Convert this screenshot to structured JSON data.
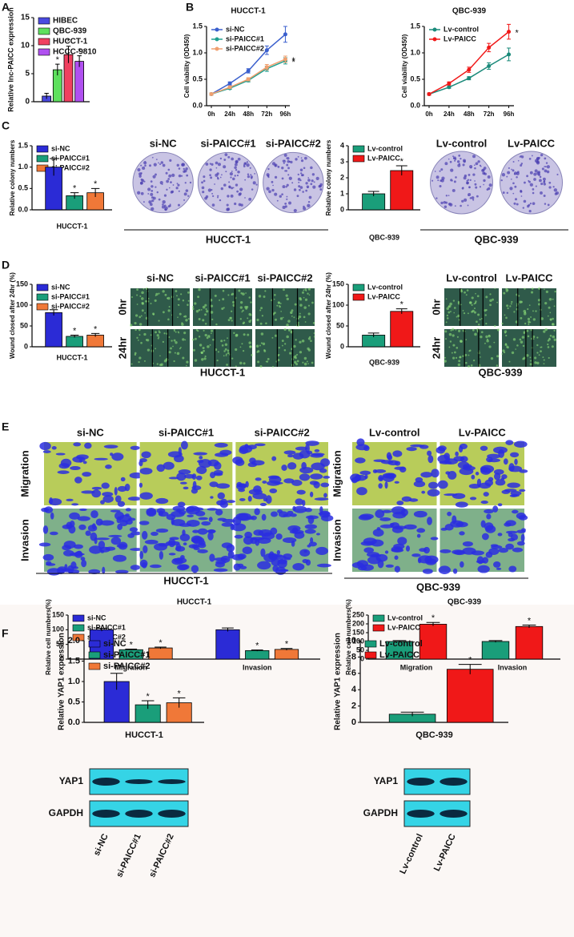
{
  "chart_data": [
    {
      "type": "bar",
      "ylabel": "Relative lnc-PAICC expression",
      "ylim": [
        0,
        15
      ],
      "yticks": [
        0,
        5,
        10,
        15
      ],
      "legend": "upper left",
      "series": [
        {
          "name": "HIBEC",
          "color": "#4a4ae0",
          "values": [
            1.0
          ],
          "errors": [
            0.5
          ],
          "annotations": [
            null
          ]
        },
        {
          "name": "QBC-939",
          "color": "#5ee05e",
          "values": [
            5.7
          ],
          "errors": [
            1.0
          ],
          "annotations": [
            "*"
          ]
        },
        {
          "name": "HUCCT-1",
          "color": "#f04060",
          "values": [
            8.4
          ],
          "errors": [
            1.5
          ],
          "annotations": [
            "*"
          ]
        },
        {
          "name": "HCCC-9810",
          "color": "#b050f0",
          "values": [
            7.2
          ],
          "errors": [
            1.0
          ],
          "annotations": [
            "*"
          ]
        }
      ]
    },
    {
      "type": "line",
      "title": "HUCCT-1",
      "ylabel": "Cell viability (OD450)",
      "categories": [
        "0h",
        "24h",
        "48h",
        "72h",
        "96h"
      ],
      "ylim": [
        0,
        1.5
      ],
      "yticks": [
        {
          "value": 0,
          "label": "0.0"
        },
        0.5,
        {
          "value": 1,
          "label": "1.0"
        },
        1.5
      ],
      "legend": "upper left",
      "series": [
        {
          "name": "si-NC",
          "color": "#3a5fcd",
          "values": [
            0.22,
            0.42,
            0.66,
            1.05,
            1.35
          ],
          "errors": [
            0.02,
            0.03,
            0.04,
            0.08,
            0.15
          ],
          "annotations": [
            null,
            null,
            null,
            null,
            null
          ]
        },
        {
          "name": "si-PAICC#1",
          "color": "#20a090",
          "values": [
            0.22,
            0.33,
            0.48,
            0.7,
            0.85
          ],
          "errors": [
            0.02,
            0.02,
            0.03,
            0.05,
            0.06
          ],
          "annotations": [
            null,
            null,
            null,
            null,
            "*"
          ]
        },
        {
          "name": "si-PAICC#2",
          "color": "#f0a070",
          "values": [
            0.22,
            0.35,
            0.5,
            0.73,
            0.88
          ],
          "errors": [
            0.02,
            0.02,
            0.03,
            0.05,
            0.06
          ],
          "annotations": [
            null,
            null,
            null,
            null,
            "*"
          ]
        }
      ]
    },
    {
      "type": "line",
      "title": "QBC-939",
      "ylabel": "Cell viability (OD450)",
      "categories": [
        "0h",
        "24h",
        "48h",
        "72h",
        "96h"
      ],
      "ylim": [
        0,
        1.5
      ],
      "yticks": [
        {
          "value": 0,
          "label": "0.0"
        },
        0.5,
        {
          "value": 1,
          "label": "1.0"
        },
        1.5
      ],
      "legend": "upper left",
      "series": [
        {
          "name": "Lv-control",
          "color": "#1a8a7a",
          "values": [
            0.22,
            0.35,
            0.52,
            0.75,
            0.97
          ],
          "errors": [
            0.02,
            0.02,
            0.03,
            0.06,
            0.12
          ],
          "annotations": [
            null,
            null,
            null,
            null,
            null
          ]
        },
        {
          "name": "Lv-PAICC",
          "color": "#f01818",
          "values": [
            0.22,
            0.42,
            0.68,
            1.1,
            1.4
          ],
          "errors": [
            0.02,
            0.03,
            0.05,
            0.08,
            0.14
          ],
          "annotations": [
            null,
            null,
            null,
            null,
            "*"
          ]
        }
      ]
    },
    {
      "type": "bar",
      "ylabel": "Relative colony numbers",
      "xlabel": "HUCCT-1",
      "ylim": [
        0,
        1.5
      ],
      "yticks": [
        {
          "value": 0,
          "label": "0.0"
        },
        0.5,
        {
          "value": 1,
          "label": "1.0"
        },
        1.5
      ],
      "legend": "upper left",
      "series": [
        {
          "name": "si-NC",
          "color": "#2b2bd6",
          "values": [
            1.0
          ],
          "errors": [
            0.2
          ],
          "annotations": [
            null
          ]
        },
        {
          "name": "si-PAICC#1",
          "color": "#1a9e7a",
          "values": [
            0.33
          ],
          "errors": [
            0.07
          ],
          "annotations": [
            "*"
          ]
        },
        {
          "name": "si-PAICC#2",
          "color": "#f07838",
          "values": [
            0.4
          ],
          "errors": [
            0.1
          ],
          "annotations": [
            "*"
          ]
        }
      ]
    },
    {
      "type": "bar",
      "ylabel": "Relative colony numbers",
      "xlabel": "QBC-939",
      "ylim": [
        0,
        4
      ],
      "yticks": [
        0,
        1,
        2,
        3,
        4
      ],
      "legend": "upper left",
      "series": [
        {
          "name": "Lv-control",
          "color": "#1a9e7a",
          "values": [
            1.0
          ],
          "errors": [
            0.15
          ],
          "annotations": [
            null
          ]
        },
        {
          "name": "Lv-PAICC",
          "color": "#f01818",
          "values": [
            2.45
          ],
          "errors": [
            0.3
          ],
          "annotations": [
            "*"
          ]
        }
      ]
    },
    {
      "type": "bar",
      "ylabel": "Wound closed after 24hr (%)",
      "xlabel": "HUCCT-1",
      "ylim": [
        0,
        150
      ],
      "yticks": [
        0,
        50,
        100,
        150
      ],
      "legend": "upper left",
      "series": [
        {
          "name": "si-NC",
          "color": "#2b2bd6",
          "values": [
            82
          ],
          "errors": [
            7
          ],
          "annotations": [
            null
          ]
        },
        {
          "name": "si-PAICC#1",
          "color": "#1a9e7a",
          "values": [
            25
          ],
          "errors": [
            3
          ],
          "annotations": [
            "*"
          ]
        },
        {
          "name": "si-PAICC#2",
          "color": "#f07838",
          "values": [
            28
          ],
          "errors": [
            4
          ],
          "annotations": [
            "*"
          ]
        }
      ]
    },
    {
      "type": "bar",
      "ylabel": "Wound closed after 24hr (%)",
      "xlabel": "QBC-939",
      "ylim": [
        0,
        150
      ],
      "yticks": [
        0,
        50,
        100,
        150
      ],
      "legend": "upper left",
      "series": [
        {
          "name": "Lv-control",
          "color": "#1a9e7a",
          "values": [
            28
          ],
          "errors": [
            5
          ],
          "annotations": [
            null
          ]
        },
        {
          "name": "Lv-PAICC",
          "color": "#f01818",
          "values": [
            85
          ],
          "errors": [
            6
          ],
          "annotations": [
            "*"
          ]
        }
      ]
    },
    {
      "type": "bar",
      "title": "HUCCT-1",
      "ylabel": "Relative cell numbers(%)",
      "categories": [
        "Migration",
        "Invasion"
      ],
      "ylim": [
        0,
        150
      ],
      "yticks": [
        0,
        50,
        100,
        150
      ],
      "legend": "upper left",
      "series": [
        {
          "name": "si-NC",
          "color": "#2b2bd6",
          "values": [
            100,
            100
          ],
          "errors": [
            5,
            6
          ],
          "annotations": [
            null,
            null
          ]
        },
        {
          "name": "si-PAICC#1",
          "color": "#1a9e7a",
          "values": [
            32,
            29
          ],
          "errors": [
            2,
            2
          ],
          "annotations": [
            "*",
            "*"
          ]
        },
        {
          "name": "si-PAICC#2",
          "color": "#f07838",
          "values": [
            38,
            33
          ],
          "errors": [
            3,
            3
          ],
          "annotations": [
            "*",
            "*"
          ]
        }
      ]
    },
    {
      "type": "bar",
      "title": "QBC-939",
      "ylabel": "Relative cell numbers(%)",
      "categories": [
        "Migration",
        "Invasion"
      ],
      "ylim": [
        0,
        250
      ],
      "yticks": [
        0,
        50,
        100,
        150,
        200,
        250
      ],
      "legend": "upper left",
      "series": [
        {
          "name": "Lv-control",
          "color": "#1a9e7a",
          "values": [
            100,
            100
          ],
          "errors": [
            5,
            5
          ],
          "annotations": [
            null,
            null
          ]
        },
        {
          "name": "Lv-PAICC",
          "color": "#f01818",
          "values": [
            198,
            185
          ],
          "errors": [
            10,
            8
          ],
          "annotations": [
            "*",
            "*"
          ]
        }
      ]
    },
    {
      "type": "bar",
      "ylabel": "Relative YAP1 expression",
      "xlabel": "HUCCT-1",
      "ylim": [
        0,
        2
      ],
      "yticks": [
        {
          "value": 0,
          "label": "0.0"
        },
        0.5,
        {
          "value": 1,
          "label": "1.0"
        },
        1.5,
        {
          "value": 2,
          "label": "2.0"
        }
      ],
      "legend": "upper left",
      "series": [
        {
          "name": "si-NC",
          "color": "#2b2bd6",
          "values": [
            1.0
          ],
          "errors": [
            0.2
          ],
          "annotations": [
            null
          ]
        },
        {
          "name": "si-PAICC#1",
          "color": "#1a9e7a",
          "values": [
            0.43
          ],
          "errors": [
            0.1
          ],
          "annotations": [
            "*"
          ]
        },
        {
          "name": "si-PAICC#2",
          "color": "#f07838",
          "values": [
            0.48
          ],
          "errors": [
            0.12
          ],
          "annotations": [
            "*"
          ]
        }
      ]
    },
    {
      "type": "bar",
      "ylabel": "Relative YAP1 expression",
      "xlabel": "QBC-939",
      "ylim": [
        0,
        10
      ],
      "yticks": [
        0,
        2,
        4,
        6,
        8,
        10
      ],
      "legend": "upper left",
      "series": [
        {
          "name": "Lv-control",
          "color": "#1a9e7a",
          "values": [
            1.0
          ],
          "errors": [
            0.25
          ],
          "annotations": [
            null
          ]
        },
        {
          "name": "Lv-PAICC",
          "color": "#f01818",
          "values": [
            6.5
          ],
          "errors": [
            0.6
          ],
          "annotations": [
            "*"
          ]
        }
      ]
    }
  ],
  "figure": {
    "panel_labels": [
      "A",
      "B",
      "C",
      "D",
      "E",
      "F"
    ],
    "images": [
      {
        "kind": "colony",
        "columns": [
          "si-NC",
          "si-PAICC#1",
          "si-PAICC#2"
        ],
        "caption": "HUCCT-1"
      },
      {
        "kind": "colony",
        "columns": [
          "Lv-control",
          "Lv-PAICC"
        ],
        "caption": "QBC-939"
      },
      {
        "kind": "wound",
        "columns": [
          "si-NC",
          "si-PAICC#1",
          "si-PAICC#2"
        ],
        "rows": [
          "0hr",
          "24hr"
        ],
        "caption": "HUCCT-1"
      },
      {
        "kind": "wound",
        "columns": [
          "Lv-control",
          "Lv-PAICC"
        ],
        "rows": [
          "0hr",
          "24hr"
        ],
        "caption": "QBC-939"
      },
      {
        "kind": "transwell",
        "columns": [
          "si-NC",
          "si-PAICC#1",
          "si-PAICC#2"
        ],
        "rows": [
          "Migration",
          "Invasion"
        ],
        "caption": "HUCCT-1"
      },
      {
        "kind": "transwell",
        "columns": [
          "Lv-control",
          "Lv-PAICC"
        ],
        "rows": [
          "Migration",
          "Invasion"
        ],
        "caption": "QBC-939"
      },
      {
        "kind": "blot",
        "rows": [
          "YAP1",
          "GAPDH"
        ],
        "lanes": [
          "si-NC",
          "si-PAICC#1",
          "si-PAICC#2"
        ]
      },
      {
        "kind": "blot",
        "rows": [
          "YAP1",
          "GAPDH"
        ],
        "lanes": [
          "Lv-control",
          "Lv-PAICC"
        ]
      }
    ]
  }
}
